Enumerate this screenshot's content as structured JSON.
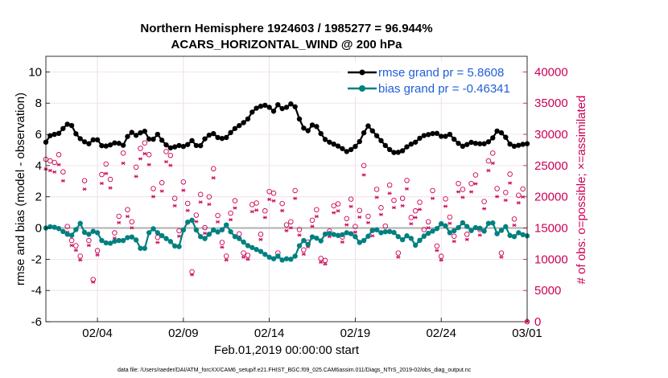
{
  "chart_data": {
    "type": "line",
    "title_line1": "Northern Hemisphere 1924603 / 1985277 = 96.944%",
    "title_line2": "ACARS_HORIZONTAL_WIND @ 200 hPa",
    "xlabel": "Feb.01,2019 00:00:00 start",
    "ylabel_left": "rmse and bias (model - observation)",
    "ylabel_right": "# of obs: o=possible; ×=assimilated",
    "footnote": "data file: /Users/raeder/DAI/ATM_forcXX/CAM6_setup/f.e21.FHIST_BGC.f09_025.CAM6assim.011/Diags_NTrS_2019-02/obs_diag_output.nc",
    "xlim": [
      0.5,
      28.5
    ],
    "x_ticks": [
      {
        "value": 3.5,
        "label": "02/04"
      },
      {
        "value": 8.5,
        "label": "02/09"
      },
      {
        "value": 13.5,
        "label": "02/14"
      },
      {
        "value": 18.5,
        "label": "02/19"
      },
      {
        "value": 23.5,
        "label": "02/24"
      },
      {
        "value": 28.5,
        "label": "03/01"
      }
    ],
    "ylim_left": [
      -6,
      11
    ],
    "y_ticks_left": [
      "-6",
      "-4",
      "-2",
      "0",
      "2",
      "4",
      "6",
      "8",
      "10"
    ],
    "ylim_right": [
      0,
      42500
    ],
    "y_ticks_right": [
      "0",
      "5000",
      "10000",
      "15000",
      "20000",
      "25000",
      "30000",
      "35000",
      "40000"
    ],
    "legend": [
      {
        "label": "rmse grand pr = 5.8608",
        "color": "#000000"
      },
      {
        "label": "bias grand pr = -0.46341",
        "color": "#008080"
      }
    ],
    "colors": {
      "rmse": "#000000",
      "bias": "#008080",
      "obs": "#cc0055",
      "zero_line": "#b0b0b0"
    },
    "rmse_anchors": [
      [
        0.5,
        5.5
      ],
      [
        0.8,
        6.0
      ],
      [
        1.2,
        6.0
      ],
      [
        1.6,
        6.5
      ],
      [
        1.9,
        6.8
      ],
      [
        2.2,
        6.1
      ],
      [
        2.6,
        5.6
      ],
      [
        3.0,
        5.4
      ],
      [
        3.4,
        5.8
      ],
      [
        3.8,
        5.2
      ],
      [
        4.2,
        5.3
      ],
      [
        4.6,
        5.5
      ],
      [
        5.0,
        5.3
      ],
      [
        5.4,
        6.2
      ],
      [
        5.8,
        5.9
      ],
      [
        6.2,
        6.3
      ],
      [
        6.6,
        5.5
      ],
      [
        7.0,
        6.0
      ],
      [
        7.4,
        5.4
      ],
      [
        7.8,
        5.1
      ],
      [
        8.2,
        5.3
      ],
      [
        8.6,
        5.2
      ],
      [
        9.0,
        5.6
      ],
      [
        9.4,
        5.1
      ],
      [
        9.8,
        5.8
      ],
      [
        10.2,
        6.1
      ],
      [
        10.6,
        5.7
      ],
      [
        11.0,
        5.8
      ],
      [
        11.4,
        6.3
      ],
      [
        11.8,
        6.6
      ],
      [
        12.2,
        6.9
      ],
      [
        12.6,
        7.6
      ],
      [
        13.0,
        7.8
      ],
      [
        13.4,
        7.9
      ],
      [
        13.7,
        7.4
      ],
      [
        14.0,
        7.9
      ],
      [
        14.3,
        7.6
      ],
      [
        14.6,
        7.8
      ],
      [
        14.9,
        8.1
      ],
      [
        15.2,
        7.1
      ],
      [
        15.5,
        6.4
      ],
      [
        15.8,
        6.2
      ],
      [
        16.1,
        6.8
      ],
      [
        16.4,
        6.2
      ],
      [
        16.8,
        5.6
      ],
      [
        17.2,
        5.4
      ],
      [
        17.6,
        5.2
      ],
      [
        18.0,
        4.9
      ],
      [
        18.4,
        5.1
      ],
      [
        18.8,
        5.6
      ],
      [
        19.2,
        6.6
      ],
      [
        19.6,
        6.1
      ],
      [
        20.0,
        5.6
      ],
      [
        20.4,
        5.1
      ],
      [
        20.8,
        4.8
      ],
      [
        21.2,
        4.9
      ],
      [
        21.6,
        5.3
      ],
      [
        22.0,
        5.5
      ],
      [
        22.4,
        5.9
      ],
      [
        22.8,
        6.0
      ],
      [
        23.2,
        6.1
      ],
      [
        23.6,
        5.8
      ],
      [
        24.0,
        6.0
      ],
      [
        24.4,
        5.5
      ],
      [
        24.8,
        5.2
      ],
      [
        25.2,
        5.5
      ],
      [
        25.6,
        5.4
      ],
      [
        26.0,
        5.4
      ],
      [
        26.4,
        5.6
      ],
      [
        26.8,
        6.3
      ],
      [
        27.2,
        5.9
      ],
      [
        27.6,
        5.2
      ],
      [
        28.0,
        5.3
      ],
      [
        28.4,
        5.4
      ]
    ],
    "bias_anchors": [
      [
        0.5,
        0.0
      ],
      [
        0.8,
        0.1
      ],
      [
        1.2,
        0.0
      ],
      [
        1.6,
        -0.3
      ],
      [
        1.9,
        -0.5
      ],
      [
        2.2,
        -0.4
      ],
      [
        2.4,
        0.8
      ],
      [
        2.6,
        -0.2
      ],
      [
        3.0,
        -0.4
      ],
      [
        3.4,
        -0.1
      ],
      [
        3.8,
        -0.9
      ],
      [
        4.2,
        -1.0
      ],
      [
        4.6,
        -0.8
      ],
      [
        5.0,
        -0.8
      ],
      [
        5.4,
        -0.5
      ],
      [
        5.8,
        -0.8
      ],
      [
        6.0,
        -1.3
      ],
      [
        6.2,
        -1.5
      ],
      [
        6.6,
        0.1
      ],
      [
        7.0,
        -0.3
      ],
      [
        7.4,
        -0.6
      ],
      [
        7.8,
        -0.9
      ],
      [
        8.2,
        -1.4
      ],
      [
        8.6,
        0.3
      ],
      [
        9.0,
        0.5
      ],
      [
        9.4,
        -0.5
      ],
      [
        9.8,
        -0.7
      ],
      [
        10.2,
        -0.1
      ],
      [
        10.6,
        -0.3
      ],
      [
        11.0,
        0.2
      ],
      [
        11.4,
        -0.5
      ],
      [
        11.8,
        -0.7
      ],
      [
        12.2,
        -1.1
      ],
      [
        12.6,
        -1.3
      ],
      [
        13.0,
        -1.5
      ],
      [
        13.4,
        -1.8
      ],
      [
        13.7,
        -2.0
      ],
      [
        14.0,
        -1.8
      ],
      [
        14.3,
        -2.1
      ],
      [
        14.6,
        -1.9
      ],
      [
        14.9,
        -2.1
      ],
      [
        15.2,
        -1.2
      ],
      [
        15.5,
        -0.8
      ],
      [
        15.8,
        -1.1
      ],
      [
        16.1,
        -0.3
      ],
      [
        16.4,
        -1.0
      ],
      [
        16.8,
        -0.3
      ],
      [
        17.2,
        -0.4
      ],
      [
        17.6,
        -0.5
      ],
      [
        18.0,
        -0.3
      ],
      [
        18.4,
        -0.4
      ],
      [
        18.8,
        -1.0
      ],
      [
        19.2,
        -0.6
      ],
      [
        19.6,
        0.0
      ],
      [
        20.0,
        -0.3
      ],
      [
        20.4,
        -0.2
      ],
      [
        20.8,
        -0.3
      ],
      [
        21.2,
        -0.8
      ],
      [
        21.6,
        -0.4
      ],
      [
        22.0,
        -1.1
      ],
      [
        22.4,
        -0.6
      ],
      [
        22.8,
        -0.3
      ],
      [
        23.2,
        -0.1
      ],
      [
        23.6,
        0.4
      ],
      [
        24.0,
        -0.3
      ],
      [
        24.4,
        -0.1
      ],
      [
        24.8,
        0.4
      ],
      [
        25.2,
        -0.2
      ],
      [
        25.6,
        0.1
      ],
      [
        26.0,
        -0.2
      ],
      [
        26.4,
        0.6
      ],
      [
        26.8,
        -0.5
      ],
      [
        27.2,
        0.2
      ],
      [
        27.6,
        -0.7
      ],
      [
        28.0,
        -0.3
      ],
      [
        28.4,
        -0.5
      ]
    ],
    "obs_anchors": [
      [
        0.5,
        26000
      ],
      [
        1.0,
        25500
      ],
      [
        1.4,
        27500
      ],
      [
        1.8,
        13500
      ],
      [
        2.2,
        12500
      ],
      [
        2.5,
        10500
      ],
      [
        2.8,
        25000
      ],
      [
        3.1,
        7000
      ],
      [
        3.4,
        6500
      ],
      [
        3.8,
        26000
      ],
      [
        4.2,
        24500
      ],
      [
        4.6,
        10800
      ],
      [
        5.0,
        27000
      ],
      [
        5.4,
        12500
      ],
      [
        5.8,
        26500
      ],
      [
        6.2,
        29000
      ],
      [
        6.6,
        26000
      ],
      [
        7.0,
        13500
      ],
      [
        7.4,
        27500
      ],
      [
        7.8,
        26500
      ],
      [
        8.2,
        13000
      ],
      [
        8.6,
        25500
      ],
      [
        9.0,
        8000
      ],
      [
        9.4,
        22500
      ],
      [
        9.8,
        14000
      ],
      [
        10.2,
        26000
      ],
      [
        10.6,
        14000
      ],
      [
        11.0,
        10500
      ],
      [
        11.4,
        21500
      ],
      [
        11.8,
        13000
      ],
      [
        12.2,
        9000
      ],
      [
        12.6,
        22000
      ],
      [
        13.0,
        14000
      ],
      [
        13.4,
        20000
      ],
      [
        13.7,
        22500
      ],
      [
        14.0,
        11000
      ],
      [
        14.3,
        20500
      ],
      [
        14.6,
        13000
      ],
      [
        15.0,
        21000
      ],
      [
        15.4,
        11000
      ],
      [
        15.8,
        13000
      ],
      [
        16.2,
        19500
      ],
      [
        16.6,
        7000
      ],
      [
        17.0,
        14500
      ],
      [
        17.4,
        21000
      ],
      [
        17.8,
        12500
      ],
      [
        18.2,
        20500
      ],
      [
        18.6,
        13500
      ],
      [
        19.0,
        25000
      ],
      [
        19.4,
        12000
      ],
      [
        19.8,
        22500
      ],
      [
        20.2,
        14000
      ],
      [
        20.6,
        24500
      ],
      [
        21.0,
        11000
      ],
      [
        21.4,
        25000
      ],
      [
        21.8,
        15500
      ],
      [
        22.2,
        20000
      ],
      [
        22.6,
        13000
      ],
      [
        23.0,
        21000
      ],
      [
        23.4,
        6800
      ],
      [
        23.8,
        21500
      ],
      [
        24.2,
        12000
      ],
      [
        24.6,
        25500
      ],
      [
        25.0,
        14000
      ],
      [
        25.4,
        27000
      ],
      [
        25.8,
        13000
      ],
      [
        26.2,
        25500
      ],
      [
        26.6,
        27500
      ],
      [
        27.0,
        11000
      ],
      [
        27.4,
        26500
      ],
      [
        27.8,
        15000
      ],
      [
        28.2,
        25500
      ],
      [
        28.5,
        0
      ]
    ]
  }
}
